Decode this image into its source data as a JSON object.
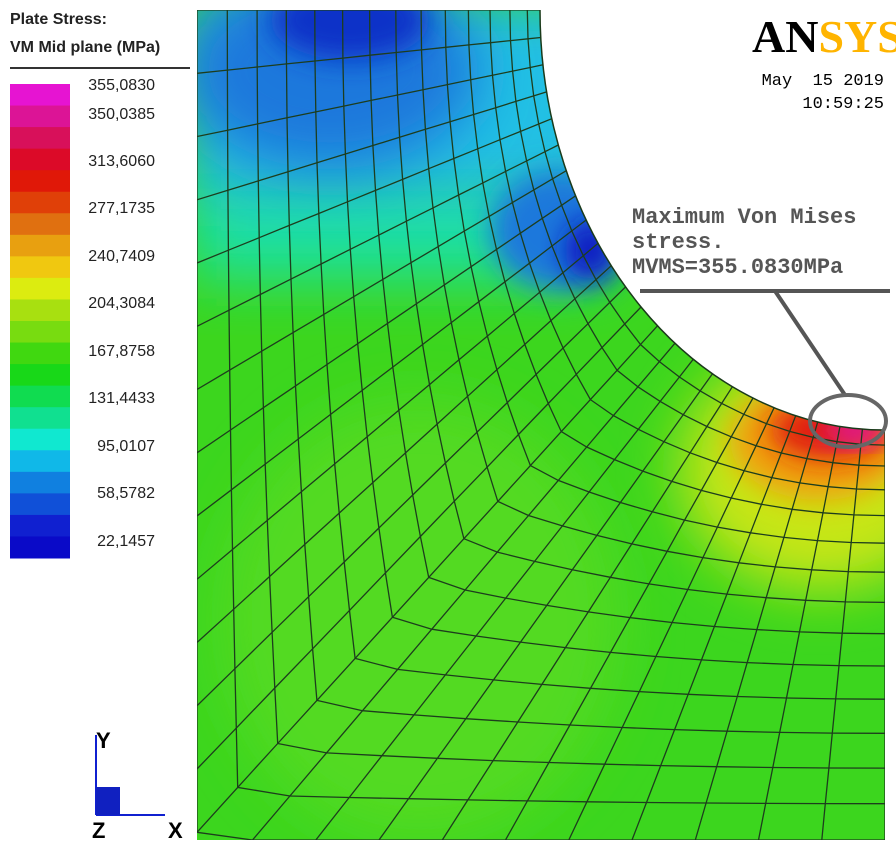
{
  "legend": {
    "title": [
      "Plate Stress:",
      "VM Mid plane (MPa)"
    ],
    "labels": [
      "355,0830",
      "350,0385",
      "313,6060",
      "277,1735",
      "240,7409",
      "204,3084",
      "167,8758",
      "131,4433",
      "95,0107",
      "58,5782",
      "22,1457"
    ]
  },
  "logo": {
    "prefix": "AN",
    "suffix": "SYS"
  },
  "timestamp": {
    "date": "May  15 2019",
    "time": "10:59:25"
  },
  "annotation": [
    "Maximum Von Mises",
    "stress.",
    "MVMS=355.0830MPa"
  ],
  "axes": {
    "y": "Y",
    "z": "Z",
    "x": "X"
  }
}
